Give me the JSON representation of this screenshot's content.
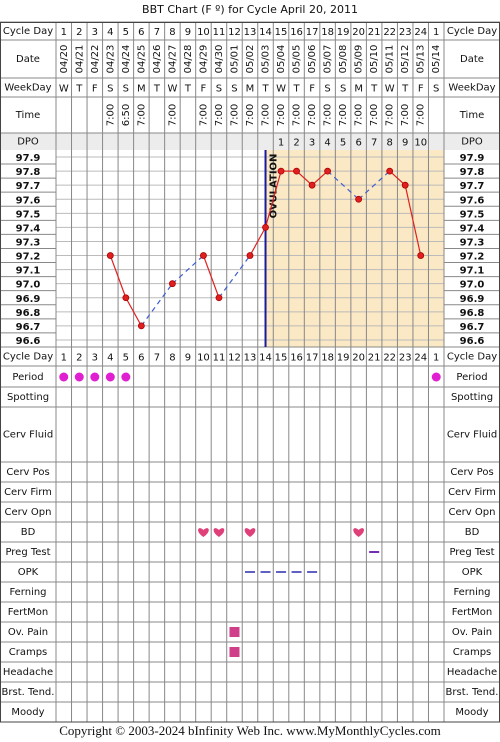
{
  "chart_data": {
    "type": "line",
    "title": "BBT Chart (F º) for Cycle April 20, 2011",
    "labels": {
      "cycle_day": "Cycle Day",
      "date": "Date",
      "weekday": "WeekDay",
      "time": "Time",
      "dpo": "DPO"
    },
    "categories": [
      1,
      2,
      3,
      4,
      5,
      6,
      7,
      8,
      9,
      10,
      11,
      12,
      13,
      14,
      15,
      16,
      17,
      18,
      19,
      20,
      21,
      22,
      23,
      24,
      1
    ],
    "dates": [
      "04/20",
      "04/21",
      "04/22",
      "04/23",
      "04/24",
      "04/25",
      "04/26",
      "04/27",
      "04/28",
      "04/29",
      "04/30",
      "05/01",
      "05/02",
      "05/03",
      "05/04",
      "05/05",
      "05/06",
      "05/07",
      "05/08",
      "05/09",
      "05/10",
      "05/11",
      "05/12",
      "05/13",
      "05/14"
    ],
    "weekdays": [
      "W",
      "T",
      "F",
      "S",
      "S",
      "M",
      "T",
      "W",
      "T",
      "F",
      "S",
      "S",
      "M",
      "T",
      "W",
      "T",
      "F",
      "S",
      "S",
      "M",
      "T",
      "W",
      "T",
      "F",
      "S"
    ],
    "times": [
      null,
      null,
      null,
      "7:00",
      "6:50",
      "7:00",
      null,
      "7:00",
      null,
      "7:00",
      "7:00",
      "7:00",
      "7:00",
      "7:00",
      "7:00",
      "7:00",
      "7:00",
      "7:00",
      "7:00",
      "7:00",
      "7:00",
      "7:00",
      "7:00",
      "7:00",
      null
    ],
    "dpo": [
      null,
      null,
      null,
      null,
      null,
      null,
      null,
      null,
      null,
      null,
      null,
      null,
      null,
      null,
      1,
      2,
      3,
      4,
      5,
      6,
      7,
      8,
      9,
      10,
      null
    ],
    "values": [
      null,
      null,
      null,
      97.2,
      96.9,
      96.7,
      null,
      97.0,
      null,
      97.2,
      96.9,
      null,
      97.2,
      97.4,
      97.8,
      97.8,
      97.7,
      97.8,
      null,
      97.6,
      null,
      97.8,
      97.7,
      97.2,
      null
    ],
    "color": "#e02020",
    "gap_color": "#4060d0",
    "ylim": [
      96.55,
      97.95
    ],
    "yticks": [
      97.9,
      97.8,
      97.7,
      97.6,
      97.5,
      97.4,
      97.3,
      97.2,
      97.1,
      {
        "value": 97.0,
        "label": "97.0"
      },
      96.9,
      96.8,
      96.7,
      96.6
    ],
    "grid": true,
    "ovulation": {
      "label": "OVULATION",
      "date": "05/03",
      "shade": "#fbe8c4"
    },
    "rows": [
      {
        "label": "Period",
        "marker": "dot",
        "color": "#e020d0",
        "days": [
          "04/20",
          "04/21",
          "04/22",
          "04/23",
          "04/24",
          "05/14"
        ]
      },
      {
        "label": "Spotting",
        "marker": "dot",
        "color": "#e020d0",
        "days": []
      },
      {
        "label": "Cerv Fluid",
        "marker": "dot",
        "color": "#e020d0",
        "days": []
      },
      {
        "label": "Cerv Pos",
        "marker": "dot",
        "color": "#e020d0",
        "days": []
      },
      {
        "label": "Cerv Firm",
        "marker": "dot",
        "color": "#e020d0",
        "days": []
      },
      {
        "label": "Cerv Opn",
        "marker": "dot",
        "color": "#e020d0",
        "days": []
      },
      {
        "label": "BD",
        "marker": "heart",
        "color": "#e0407a",
        "days": [
          "04/29",
          "04/30",
          "05/02",
          "05/09"
        ]
      },
      {
        "label": "Preg Test",
        "marker": "dash",
        "color": "#7030b0",
        "days": [
          "05/10"
        ]
      },
      {
        "label": "OPK",
        "marker": "dash",
        "color": "#6060c0",
        "days": [
          "05/02",
          "05/03",
          "05/04",
          "05/05",
          "05/06"
        ]
      },
      {
        "label": "Ferning",
        "marker": "dot",
        "color": "#e020d0",
        "days": []
      },
      {
        "label": "FertMon",
        "marker": "dot",
        "color": "#e020d0",
        "days": []
      },
      {
        "label": "Ov. Pain",
        "marker": "square",
        "color": "#d0408a",
        "days": [
          "05/01"
        ]
      },
      {
        "label": "Cramps",
        "marker": "square",
        "color": "#d0408a",
        "days": [
          "05/01"
        ]
      },
      {
        "label": "Headache",
        "marker": "dot",
        "color": "#e020d0",
        "days": []
      },
      {
        "label": "Brst. Tend.",
        "marker": "dot",
        "color": "#e020d0",
        "days": []
      },
      {
        "label": "Moody",
        "marker": "dot",
        "color": "#e020d0",
        "days": []
      }
    ],
    "footer": "Copyright © 2003-2024 bInfinity Web Inc.     www.MyMonthlyCycles.com"
  }
}
